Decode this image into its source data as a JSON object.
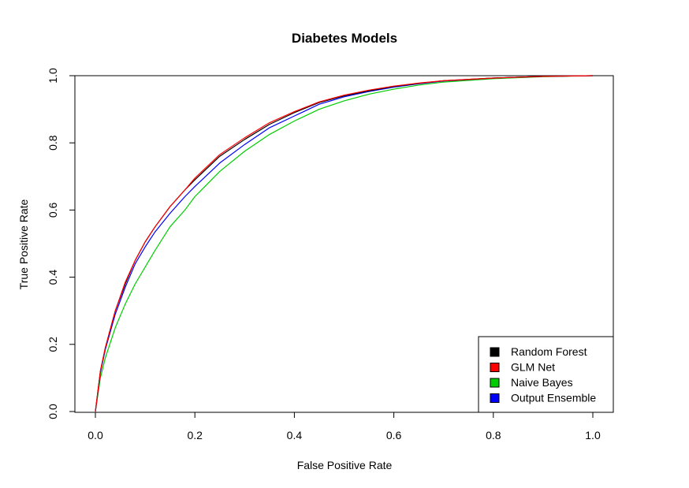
{
  "chart_data": {
    "type": "line",
    "title": "Diabetes Models",
    "xlabel": "False Positive Rate",
    "ylabel": "True Positive Rate",
    "xlim": [
      0,
      1
    ],
    "ylim": [
      0,
      1
    ],
    "x_ticks": [
      "0.0",
      "0.2",
      "0.4",
      "0.6",
      "0.8",
      "1.0"
    ],
    "y_ticks": [
      "0.0",
      "0.2",
      "0.4",
      "0.6",
      "0.8",
      "1.0"
    ],
    "grid": false,
    "legend_position": "bottom-right",
    "series": [
      {
        "name": "Random Forest",
        "color": "#000000",
        "x": [
          0,
          0.01,
          0.02,
          0.04,
          0.06,
          0.08,
          0.1,
          0.12,
          0.15,
          0.18,
          0.2,
          0.25,
          0.3,
          0.35,
          0.4,
          0.45,
          0.5,
          0.55,
          0.6,
          0.65,
          0.7,
          0.8,
          0.9,
          1.0
        ],
        "y": [
          0,
          0.12,
          0.19,
          0.3,
          0.38,
          0.45,
          0.505,
          0.55,
          0.61,
          0.66,
          0.69,
          0.76,
          0.81,
          0.855,
          0.89,
          0.92,
          0.94,
          0.955,
          0.968,
          0.977,
          0.985,
          0.993,
          0.998,
          1.0
        ]
      },
      {
        "name": "GLM Net",
        "color": "#ff0000",
        "x": [
          0,
          0.01,
          0.02,
          0.04,
          0.06,
          0.08,
          0.1,
          0.12,
          0.15,
          0.18,
          0.2,
          0.25,
          0.3,
          0.35,
          0.4,
          0.45,
          0.5,
          0.55,
          0.6,
          0.65,
          0.7,
          0.8,
          0.9,
          1.0
        ],
        "y": [
          0,
          0.12,
          0.19,
          0.3,
          0.385,
          0.45,
          0.505,
          0.55,
          0.61,
          0.66,
          0.695,
          0.765,
          0.815,
          0.86,
          0.893,
          0.922,
          0.942,
          0.957,
          0.969,
          0.978,
          0.985,
          0.993,
          0.998,
          1.0
        ]
      },
      {
        "name": "Naive Bayes",
        "color": "#00cd00",
        "x": [
          0,
          0.01,
          0.02,
          0.04,
          0.06,
          0.08,
          0.1,
          0.12,
          0.15,
          0.18,
          0.2,
          0.25,
          0.3,
          0.35,
          0.4,
          0.45,
          0.5,
          0.55,
          0.6,
          0.65,
          0.7,
          0.8,
          0.9,
          1.0
        ],
        "y": [
          0,
          0.1,
          0.16,
          0.25,
          0.32,
          0.38,
          0.43,
          0.48,
          0.55,
          0.6,
          0.64,
          0.715,
          0.775,
          0.825,
          0.865,
          0.9,
          0.925,
          0.945,
          0.96,
          0.972,
          0.981,
          0.991,
          0.997,
          1.0
        ]
      },
      {
        "name": "Output Ensemble",
        "color": "#0000ff",
        "x": [
          0,
          0.01,
          0.02,
          0.04,
          0.06,
          0.08,
          0.1,
          0.12,
          0.15,
          0.18,
          0.2,
          0.25,
          0.3,
          0.35,
          0.4,
          0.45,
          0.5,
          0.55,
          0.6,
          0.65,
          0.7,
          0.8,
          0.9,
          1.0
        ],
        "y": [
          0,
          0.115,
          0.185,
          0.29,
          0.37,
          0.44,
          0.49,
          0.535,
          0.59,
          0.64,
          0.67,
          0.74,
          0.795,
          0.845,
          0.88,
          0.915,
          0.937,
          0.953,
          0.966,
          0.976,
          0.984,
          0.993,
          0.998,
          1.0
        ]
      }
    ]
  }
}
